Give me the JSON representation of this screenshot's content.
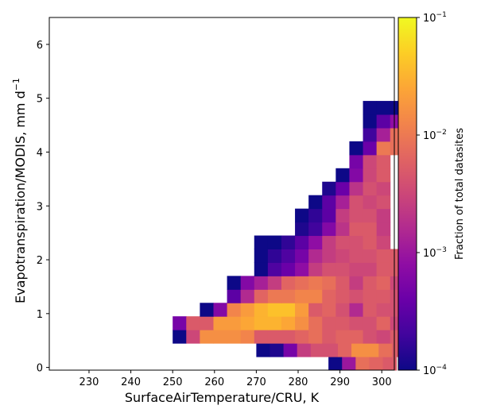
{
  "chart_data": {
    "type": "heatmap",
    "title": "",
    "xlabel": "SurfaceAirTemperature/CRU,  K",
    "ylabel": "Evapotranspiration/MODIS,  mm d",
    "ylabel_sup": "−1",
    "xlim": [
      220.5,
      303.0
    ],
    "ylim": [
      -0.05,
      6.5
    ],
    "xticks": [
      230,
      240,
      250,
      260,
      270,
      280,
      290,
      300
    ],
    "yticks": [
      0,
      1,
      2,
      3,
      4,
      5,
      6
    ],
    "bin_width_x": 3.25,
    "bin_height_y": 0.25,
    "colorbar": {
      "label": "Fraction of total datasites",
      "scale": "log",
      "colormap": "plasma",
      "range": [
        0.0001,
        0.1
      ],
      "ticks": [
        {
          "value": 0.0001,
          "base": "10",
          "exp": "−4"
        },
        {
          "value": 0.001,
          "base": "10",
          "exp": "−3"
        },
        {
          "value": 0.01,
          "base": "10",
          "exp": "−2"
        },
        {
          "value": 0.1,
          "base": "10",
          "exp": "−1"
        }
      ]
    },
    "bins_note": "rows: [y_low, x_start, [log10 fraction per cell, left to right]]",
    "rows": [
      [
        -0.05,
        287.25,
        [
          -4.0,
          -3.0,
          -2.1,
          -2.2,
          -2.3
        ]
      ],
      [
        0.2,
        270.0,
        [
          -4.0,
          -3.9,
          -3.3,
          -2.6,
          -2.4,
          -2.4,
          -2.2,
          -1.8,
          -1.8,
          -2.1,
          -2.3
        ]
      ],
      [
        0.45,
        250.0,
        [
          -4.0,
          -2.5,
          -1.8,
          -1.8,
          -1.8,
          -1.9,
          -2.3,
          -2.3,
          -2.3,
          -2.2,
          -2.1,
          -2.3,
          -2.2,
          -2.2,
          -2.4,
          -2.5,
          -2.3
        ]
      ],
      [
        0.7,
        250.0,
        [
          -3.3,
          -2.3,
          -2.3,
          -1.7,
          -1.7,
          -1.6,
          -1.5,
          -1.5,
          -1.6,
          -1.8,
          -2.1,
          -2.3,
          -2.3,
          -2.4,
          -2.4,
          -2.2,
          -2.5
        ]
      ],
      [
        0.95,
        256.5,
        [
          -4.0,
          -3.2,
          -1.9,
          -1.7,
          -1.5,
          -1.4,
          -1.4,
          -1.7,
          -2.3,
          -2.2,
          -2.4,
          -2.8,
          -2.3,
          -2.4,
          -2.4
        ]
      ],
      [
        1.2,
        263.0,
        [
          -3.5,
          -2.8,
          -2.2,
          -2.0,
          -2.0,
          -1.9,
          -1.9,
          -2.2,
          -2.3,
          -2.4,
          -2.3,
          -2.3,
          -2.4
        ]
      ],
      [
        1.45,
        263.0,
        [
          -4.0,
          -3.2,
          -2.9,
          -2.6,
          -2.2,
          -2.1,
          -2.0,
          -2.1,
          -2.3,
          -2.6,
          -2.3,
          -2.2,
          -2.5
        ]
      ],
      [
        1.7,
        269.5,
        [
          -4.0,
          -3.6,
          -3.4,
          -3.1,
          -2.6,
          -2.4,
          -2.4,
          -2.5,
          -2.5,
          -2.3,
          -2.3
        ]
      ],
      [
        1.95,
        269.5,
        [
          -4.0,
          -3.8,
          -3.6,
          -3.3,
          -2.8,
          -2.6,
          -2.5,
          -2.4,
          -2.4,
          -2.3,
          -2.3
        ]
      ],
      [
        2.2,
        269.5,
        [
          -4.0,
          -4.0,
          -3.8,
          -3.5,
          -3.1,
          -2.6,
          -2.4,
          -2.4,
          -2.3,
          -2.5
        ]
      ],
      [
        2.45,
        279.25,
        [
          -3.9,
          -3.7,
          -3.2,
          -2.7,
          -2.3,
          -2.3,
          -2.6
        ]
      ],
      [
        2.7,
        279.25,
        [
          -4.0,
          -3.8,
          -3.5,
          -2.6,
          -2.4,
          -2.4,
          -2.6
        ]
      ],
      [
        2.95,
        282.5,
        [
          -4.0,
          -3.5,
          -2.9,
          -2.4,
          -2.5,
          -2.4
        ]
      ],
      [
        3.2,
        285.75,
        [
          -3.9,
          -3.4,
          -2.7,
          -2.4,
          -2.5
        ]
      ],
      [
        3.45,
        289.0,
        [
          -4.0,
          -3.2,
          -2.5,
          -2.3
        ]
      ],
      [
        3.7,
        292.25,
        [
          -3.3,
          -2.5,
          -2.3
        ]
      ],
      [
        3.95,
        292.25,
        [
          -4.0,
          -3.4,
          -2.0,
          -2.1
        ]
      ],
      [
        4.2,
        295.5,
        [
          -3.7,
          -2.9,
          -2.1
        ]
      ],
      [
        4.45,
        295.5,
        [
          -4.0,
          -3.5,
          -3.1
        ]
      ],
      [
        4.7,
        295.5,
        [
          -4.0,
          -4.0,
          -4.0
        ]
      ]
    ]
  }
}
